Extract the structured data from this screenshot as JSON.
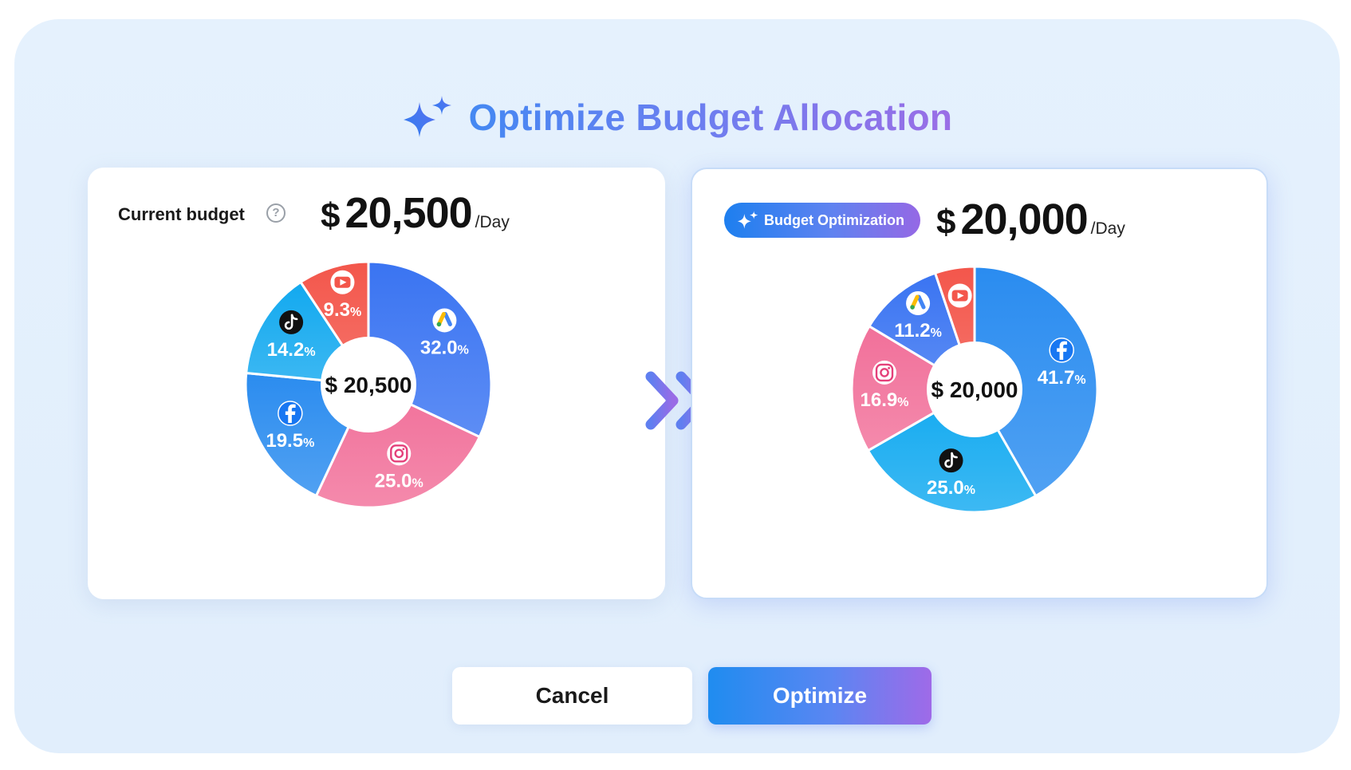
{
  "title": "Optimize Budget Allocation",
  "current": {
    "label": "Current budget",
    "help": "?",
    "currency": "$",
    "amount": "20,500",
    "unit": "/Day",
    "center_label": "$ 20,500",
    "slices": [
      {
        "platform": "google-ads",
        "percent": "32.0",
        "value": 32.0,
        "color": "#3a74f2"
      },
      {
        "platform": "instagram",
        "percent": "25.0",
        "value": 25.0,
        "color": "#f1709a"
      },
      {
        "platform": "facebook",
        "percent": "19.5",
        "value": 19.5,
        "color": "#2b8cef"
      },
      {
        "platform": "tiktok",
        "percent": "14.2",
        "value": 14.2,
        "color": "#12a9ef"
      },
      {
        "platform": "youtube",
        "percent": "9.3",
        "value": 9.3,
        "color": "#f3564b"
      }
    ]
  },
  "optimized": {
    "badge": "Budget Optimization",
    "currency": "$",
    "amount": "20,000",
    "unit": "/Day",
    "center_label": "$ 20,000",
    "slices": [
      {
        "platform": "facebook",
        "percent": "41.7",
        "value": 41.7,
        "color": "#2a8cf0"
      },
      {
        "platform": "tiktok",
        "percent": "25.0",
        "value": 25.0,
        "color": "#12aaf0"
      },
      {
        "platform": "instagram",
        "percent": "16.9",
        "value": 16.9,
        "color": "#f1709a"
      },
      {
        "platform": "google-ads",
        "percent": "11.2",
        "value": 11.2,
        "color": "#3a74f2"
      },
      {
        "platform": "youtube",
        "percent": "5.2",
        "value": 5.2,
        "color": "#f3564b"
      }
    ]
  },
  "buttons": {
    "cancel": "Cancel",
    "optimize": "Optimize"
  },
  "percent_sign": "%"
}
